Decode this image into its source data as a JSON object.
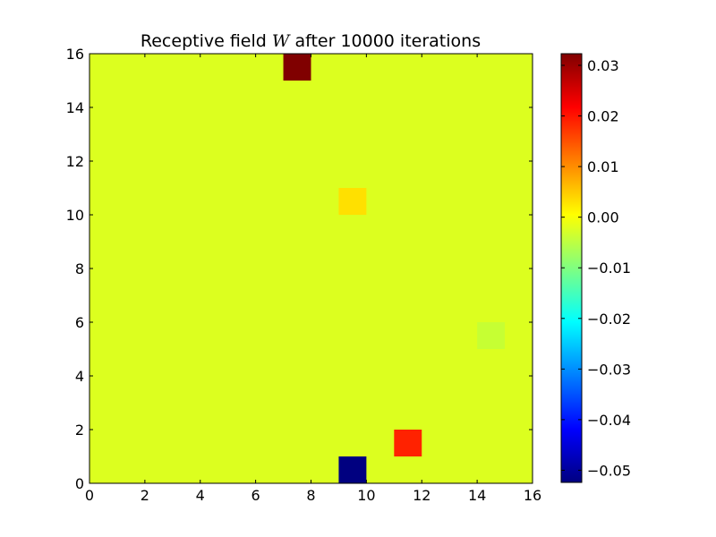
{
  "chart_data": {
    "type": "heatmap",
    "title": {
      "before": "Receptive field",
      "symbol": "W",
      "after": "after 10000 iterations"
    },
    "xlabel": "",
    "ylabel": "",
    "xlim": [
      0,
      16
    ],
    "ylim": [
      0,
      16
    ],
    "grid": false,
    "x_ticks": [
      "0",
      "2",
      "4",
      "6",
      "8",
      "10",
      "12",
      "14",
      "16"
    ],
    "y_ticks": [
      "0",
      "2",
      "4",
      "6",
      "8",
      "10",
      "12",
      "14",
      "16"
    ],
    "background_value": 0.0,
    "background_color": "#dcff1f",
    "cells": [
      {
        "x": 7,
        "y": 15,
        "value": 0.032,
        "color": "#800000"
      },
      {
        "x": 9,
        "y": 10,
        "value": 0.004,
        "color": "#ffe000"
      },
      {
        "x": 14,
        "y": 5,
        "value": -0.004,
        "color": "#c6ff33"
      },
      {
        "x": 11,
        "y": 1,
        "value": 0.022,
        "color": "#ff2200"
      },
      {
        "x": 9,
        "y": 0,
        "value": -0.052,
        "color": "#000080"
      }
    ],
    "colorbar": {
      "colormap": "jet",
      "min": -0.0524,
      "max": 0.0323,
      "ticks": [
        "0.03",
        "0.02",
        "0.01",
        "0.00",
        "−0.01",
        "−0.02",
        "−0.03",
        "−0.04",
        "−0.05"
      ],
      "tick_values": [
        0.03,
        0.02,
        0.01,
        0.0,
        -0.01,
        -0.02,
        -0.03,
        -0.04,
        -0.05
      ],
      "jet_stops": [
        "#000080",
        "#0000ff",
        "#0080ff",
        "#00ffff",
        "#80ff80",
        "#ffff00",
        "#ff8000",
        "#ff0000",
        "#800000"
      ]
    }
  }
}
